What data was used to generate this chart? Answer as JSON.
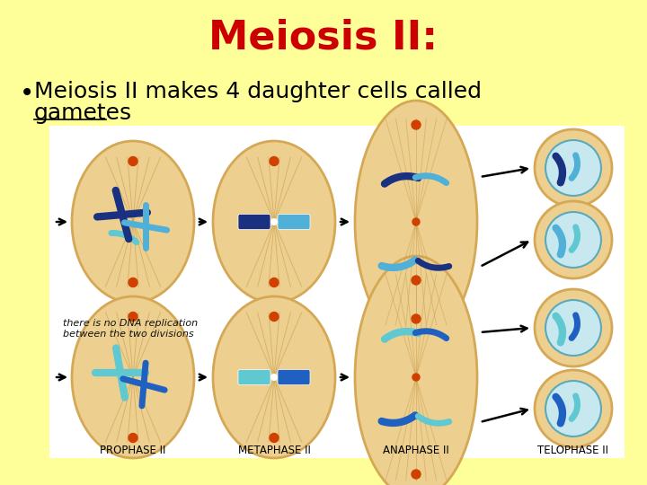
{
  "background_color": "#FFFF99",
  "title": "Meiosis II:",
  "title_color": "#CC0000",
  "title_fontsize": 32,
  "bullet_text_line1": "Meiosis II makes 4 daughter cells called",
  "bullet_text_line2": "gametes",
  "bullet_fontsize": 18,
  "bullet_color": "#000000",
  "label_prophase": "PROPHASE II",
  "label_metaphase": "METAPHASE II",
  "label_anaphase": "ANAPHASE II",
  "label_telophase": "TELOPHASE II",
  "label_fontsize": 8.5,
  "diagram_bg": "#FFFFFF",
  "cell_outer": "#D4A855",
  "cell_inner": "#EDD090",
  "cell_inner2": "#F5E0A0",
  "blue_dark": "#1A3080",
  "blue_mid": "#2060C0",
  "blue_light": "#50B0D8",
  "teal": "#60C8D0",
  "centromere": "#D04000",
  "spindle": "#C8A050",
  "dna_note": "there is no DNA replication\nbetween the two divisions"
}
